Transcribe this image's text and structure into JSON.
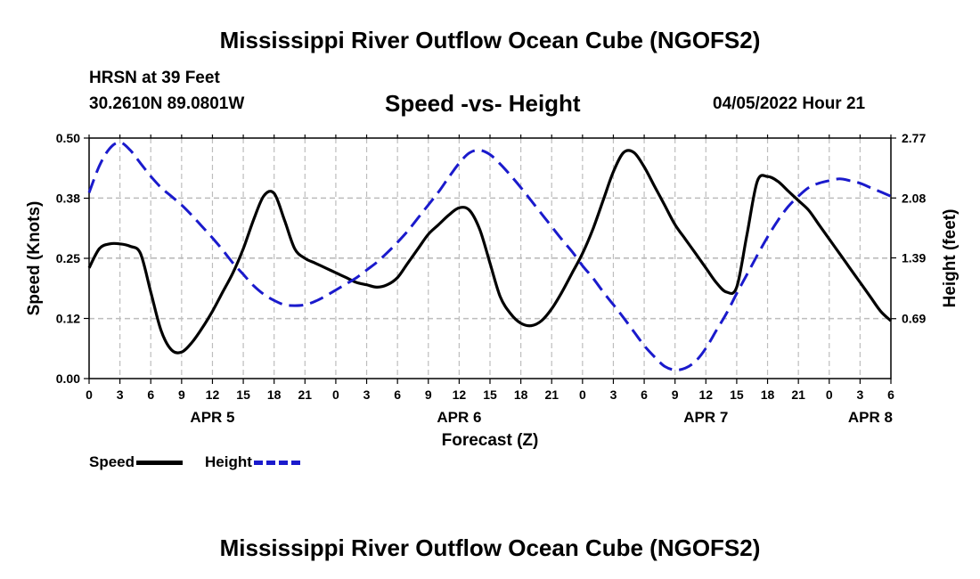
{
  "page": {
    "title": "Mississippi River Outflow Ocean Cube (NGOFS2)",
    "station": "HRSN at 39 Feet",
    "coords": "30.2610N  89.0801W",
    "subtitle": "Speed -vs- Height",
    "run_time": "04/05/2022 Hour 21",
    "bottom_title": "Mississippi River Outflow Ocean Cube (NGOFS2)"
  },
  "legend": {
    "speed_label": "Speed",
    "height_label": "Height"
  },
  "colors": {
    "speed": "#000000",
    "height": "#1a1acc",
    "grid": "#bdbdbd"
  },
  "chart_data": {
    "type": "line",
    "title": "Speed -vs- Height",
    "xlabel": "Forecast (Z)",
    "ylabel": "Speed (Knots)",
    "y2label": "Height (feet)",
    "x_unit": "hours from APR 5 00Z",
    "xlim": [
      0,
      78
    ],
    "ylim": [
      0,
      0.5
    ],
    "y2lim": [
      0,
      2.77
    ],
    "x_ticks": [
      0,
      3,
      6,
      9,
      12,
      15,
      18,
      21,
      24,
      27,
      30,
      33,
      36,
      39,
      42,
      45,
      48,
      51,
      54,
      57,
      60,
      63,
      66,
      69,
      72,
      75,
      78
    ],
    "x_tick_labels": [
      "0",
      "3",
      "6",
      "9",
      "12",
      "15",
      "18",
      "21",
      "0",
      "3",
      "6",
      "9",
      "12",
      "15",
      "18",
      "21",
      "0",
      "3",
      "6",
      "9",
      "12",
      "15",
      "18",
      "21",
      "0",
      "3",
      "6"
    ],
    "y_ticks": [
      0,
      0.125,
      0.25,
      0.375,
      0.5
    ],
    "y_tick_labels": [
      "0.00",
      "0.12",
      "0.25",
      "0.38",
      "0.50"
    ],
    "y2_ticks": [
      0.69,
      1.39,
      2.08,
      2.77
    ],
    "y2_tick_labels": [
      "0.69",
      "1.39",
      "2.08",
      "2.77"
    ],
    "date_labels": [
      {
        "x": 12,
        "label": "APR 5"
      },
      {
        "x": 36,
        "label": "APR 6"
      },
      {
        "x": 60,
        "label": "APR 7"
      },
      {
        "x": 76,
        "label": "APR 8"
      }
    ],
    "series": [
      {
        "name": "Speed",
        "axis": "left",
        "x": [
          0,
          1,
          2,
          3,
          4,
          5,
          6,
          7,
          8,
          9,
          10,
          11,
          12,
          13,
          14,
          15,
          16,
          17,
          18,
          19,
          20,
          21,
          22,
          23,
          24,
          25,
          26,
          27,
          28,
          29,
          30,
          31,
          32,
          33,
          34,
          35,
          36,
          37,
          38,
          39,
          40,
          41,
          42,
          43,
          44,
          45,
          46,
          47,
          48,
          49,
          50,
          51,
          52,
          53,
          54,
          55,
          56,
          57,
          58,
          59,
          60,
          61,
          62,
          63,
          64,
          65,
          66,
          67,
          68,
          69,
          70,
          71,
          72,
          73,
          74,
          75,
          76,
          77,
          78
        ],
        "values": [
          0.23,
          0.27,
          0.28,
          0.28,
          0.275,
          0.26,
          0.18,
          0.1,
          0.06,
          0.055,
          0.075,
          0.105,
          0.14,
          0.18,
          0.22,
          0.27,
          0.33,
          0.38,
          0.385,
          0.33,
          0.27,
          0.25,
          0.24,
          0.23,
          0.22,
          0.21,
          0.2,
          0.195,
          0.19,
          0.195,
          0.21,
          0.24,
          0.27,
          0.3,
          0.32,
          0.34,
          0.355,
          0.35,
          0.31,
          0.24,
          0.17,
          0.135,
          0.115,
          0.11,
          0.12,
          0.145,
          0.18,
          0.22,
          0.26,
          0.31,
          0.37,
          0.43,
          0.47,
          0.47,
          0.44,
          0.4,
          0.36,
          0.32,
          0.29,
          0.26,
          0.23,
          0.2,
          0.18,
          0.19,
          0.3,
          0.41,
          0.42,
          0.41,
          0.39,
          0.37,
          0.35,
          0.32,
          0.29,
          0.26,
          0.23,
          0.2,
          0.17,
          0.14,
          0.12
        ]
      },
      {
        "name": "Height",
        "axis": "right",
        "x": [
          0,
          1,
          2,
          3,
          4,
          5,
          6,
          7,
          8,
          9,
          10,
          11,
          12,
          13,
          14,
          15,
          16,
          17,
          18,
          19,
          20,
          21,
          22,
          23,
          24,
          25,
          26,
          27,
          28,
          29,
          30,
          31,
          32,
          33,
          34,
          35,
          36,
          37,
          38,
          39,
          40,
          41,
          42,
          43,
          44,
          45,
          46,
          47,
          48,
          49,
          50,
          51,
          52,
          53,
          54,
          55,
          56,
          57,
          58,
          59,
          60,
          61,
          62,
          63,
          64,
          65,
          66,
          67,
          68,
          69,
          70,
          71,
          72,
          73,
          74,
          75,
          76,
          77,
          78
        ],
        "values": [
          2.14,
          2.45,
          2.65,
          2.72,
          2.63,
          2.48,
          2.33,
          2.2,
          2.1,
          2.0,
          1.88,
          1.75,
          1.62,
          1.48,
          1.33,
          1.2,
          1.07,
          0.97,
          0.9,
          0.85,
          0.84,
          0.85,
          0.89,
          0.95,
          1.02,
          1.09,
          1.16,
          1.25,
          1.34,
          1.45,
          1.57,
          1.7,
          1.85,
          2.0,
          2.15,
          2.32,
          2.48,
          2.6,
          2.63,
          2.58,
          2.47,
          2.34,
          2.2,
          2.05,
          1.9,
          1.75,
          1.6,
          1.46,
          1.3,
          1.16,
          1.0,
          0.85,
          0.7,
          0.54,
          0.38,
          0.25,
          0.14,
          0.1,
          0.12,
          0.2,
          0.35,
          0.55,
          0.75,
          0.98,
          1.2,
          1.42,
          1.63,
          1.82,
          1.98,
          2.1,
          2.2,
          2.25,
          2.28,
          2.3,
          2.28,
          2.25,
          2.2,
          2.15,
          2.1
        ]
      }
    ]
  }
}
